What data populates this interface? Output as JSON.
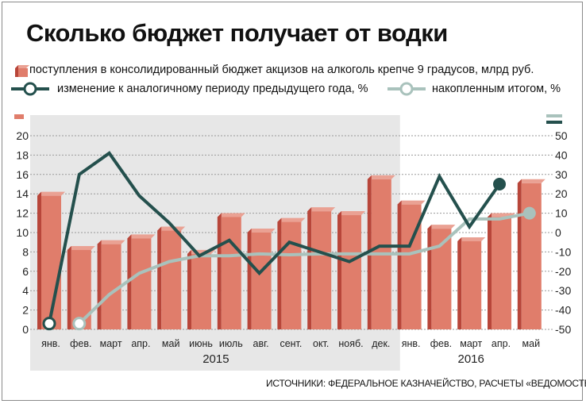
{
  "title": "Сколько бюджет получает от водки",
  "legend": {
    "bars_label": "поступления в консолидированный бюджет акцизов на алкоголь крепче 9 градусов, млрд руб.",
    "yoy_label": "изменение к аналогичному периоду предыдущего года, %",
    "cum_label": "накопленным итогом, %"
  },
  "source": "ИСТОЧНИКИ: ФЕДЕРАЛЬНОЕ КАЗНАЧЕЙСТВО, РАСЧЕТЫ «ВЕДОМОСТЕЙ»",
  "colors": {
    "bar": "#e07d6b",
    "bar_dark": "#b8463a",
    "yoy": "#24504d",
    "cum": "#a9c2bc",
    "panel": "#e7e7e7"
  },
  "chart_data": {
    "type": "bar",
    "categories": [
      "янв.",
      "фев.",
      "март",
      "апр.",
      "май",
      "июнь",
      "июль",
      "авг.",
      "сент.",
      "окт.",
      "нояб.",
      "дек.",
      "янв.",
      "фев.",
      "март",
      "апр.",
      "май"
    ],
    "years": [
      {
        "label": "2015",
        "start": 0,
        "end": 11
      },
      {
        "label": "2016",
        "start": 12,
        "end": 16
      }
    ],
    "y_left": {
      "min": 0,
      "max": 20,
      "ticks": [
        0,
        2,
        4,
        6,
        8,
        10,
        12,
        14,
        16,
        18,
        20
      ]
    },
    "y_right": {
      "min": -50,
      "max": 50,
      "ticks": [
        -50,
        -40,
        -30,
        -20,
        -10,
        0,
        10,
        20,
        30,
        40,
        50
      ]
    },
    "series": [
      {
        "type": "bar",
        "axis": "left",
        "values": [
          13.8,
          8.2,
          8.8,
          9.4,
          10.2,
          7.8,
          11.6,
          10.0,
          11.1,
          12.2,
          11.8,
          15.5,
          12.9,
          10.4,
          9.1,
          11.6,
          15.1
        ]
      },
      {
        "type": "line",
        "axis": "right",
        "values": [
          -47,
          30,
          41,
          19,
          5,
          -12,
          -4,
          -21,
          -5,
          -10,
          -15,
          -7,
          -7,
          29,
          3,
          25,
          null
        ]
      },
      {
        "type": "line",
        "axis": "right",
        "values": [
          null,
          -47,
          -32,
          -21,
          -15,
          -12,
          -12,
          -11,
          -11.5,
          -11,
          -11,
          -11,
          -11,
          -7,
          7,
          7,
          10
        ]
      }
    ]
  }
}
